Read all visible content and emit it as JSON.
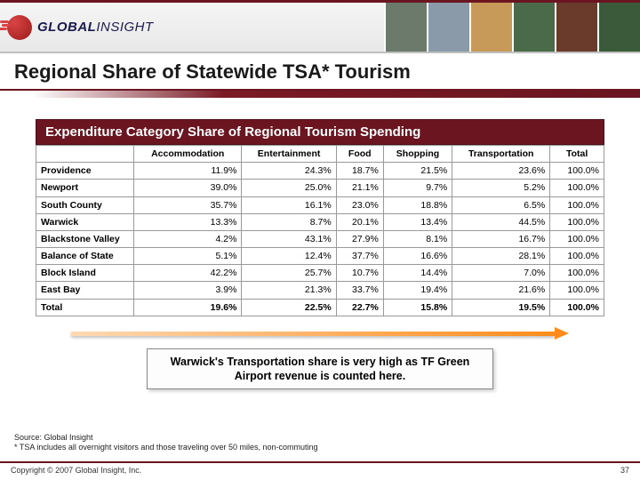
{
  "logo": {
    "brand": "GLOBAL",
    "brand2": "INSIGHT"
  },
  "header_imgs": [
    "#6b7a6b",
    "#8a9aa8",
    "#c79a5a",
    "#4a6a4a",
    "#6a3a2a",
    "#3a5a3a"
  ],
  "title": "Regional Share of Statewide TSA* Tourism",
  "table": {
    "title": "Expenditure Category Share of Regional Tourism Spending",
    "columns": [
      "Accommodation",
      "Entertainment",
      "Food",
      "Shopping",
      "Transportation",
      "Total"
    ],
    "rows": [
      {
        "label": "Providence",
        "values": [
          "11.9%",
          "24.3%",
          "18.7%",
          "21.5%",
          "23.6%",
          "100.0%"
        ]
      },
      {
        "label": "Newport",
        "values": [
          "39.0%",
          "25.0%",
          "21.1%",
          "9.7%",
          "5.2%",
          "100.0%"
        ]
      },
      {
        "label": "South County",
        "values": [
          "35.7%",
          "16.1%",
          "23.0%",
          "18.8%",
          "6.5%",
          "100.0%"
        ]
      },
      {
        "label": "Warwick",
        "values": [
          "13.3%",
          "8.7%",
          "20.1%",
          "13.4%",
          "44.5%",
          "100.0%"
        ]
      },
      {
        "label": "Blackstone Valley",
        "values": [
          "4.2%",
          "43.1%",
          "27.9%",
          "8.1%",
          "16.7%",
          "100.0%"
        ]
      },
      {
        "label": "Balance of State",
        "values": [
          "5.1%",
          "12.4%",
          "37.7%",
          "16.6%",
          "28.1%",
          "100.0%"
        ]
      },
      {
        "label": "Block Island",
        "values": [
          "42.2%",
          "25.7%",
          "10.7%",
          "14.4%",
          "7.0%",
          "100.0%"
        ]
      },
      {
        "label": "East Bay",
        "values": [
          "3.9%",
          "21.3%",
          "33.7%",
          "19.4%",
          "21.6%",
          "100.0%"
        ]
      }
    ],
    "total": {
      "label": "Total",
      "values": [
        "19.6%",
        "22.5%",
        "22.7%",
        "15.8%",
        "19.5%",
        "100.0%"
      ]
    }
  },
  "callout": "Warwick's Transportation share is very high as TF Green Airport revenue is counted here.",
  "footnotes": {
    "source": "Source:  Global Insight",
    "note": "* TSA includes all overnight visitors and those traveling over 50 miles, non-commuting"
  },
  "footer": {
    "copyright": "Copyright © 2007 Global Insight, Inc.",
    "page": "37"
  },
  "colors": {
    "brand_red": "#6a1520",
    "arrow": "#ff8c1a"
  }
}
